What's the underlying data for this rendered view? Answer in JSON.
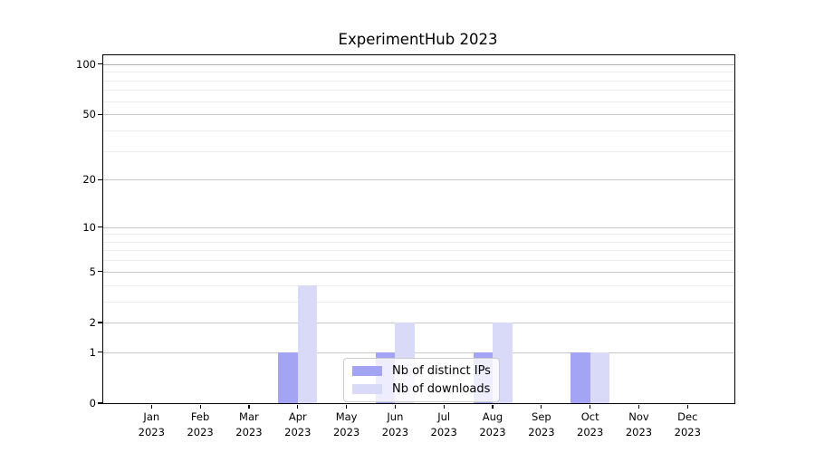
{
  "title": "ExperimentHub 2023",
  "chart_data": {
    "type": "bar",
    "title": "ExperimentHub 2023",
    "categories": [
      "Jan",
      "Feb",
      "Mar",
      "Apr",
      "May",
      "Jun",
      "Jul",
      "Aug",
      "Sep",
      "Oct",
      "Nov",
      "Dec"
    ],
    "year": "2023",
    "series": [
      {
        "name": "Nb of distinct IPs",
        "color": "#a4a4f4",
        "values": [
          0,
          0,
          0,
          1,
          0,
          1,
          0,
          1,
          0,
          1,
          0,
          0
        ]
      },
      {
        "name": "Nb of downloads",
        "color": "#d9d9f8",
        "values": [
          0,
          0,
          0,
          4,
          0,
          2,
          0,
          2,
          0,
          1,
          0,
          0
        ]
      }
    ],
    "y_scale": "log1p",
    "y_major_ticks": [
      0,
      1,
      2,
      5,
      10,
      20,
      50,
      100
    ],
    "y_minor_gridlines": [
      3,
      4,
      6,
      7,
      8,
      9,
      30,
      40,
      60,
      70,
      80,
      90
    ],
    "ylim": [
      0,
      113
    ],
    "xlabel": "",
    "ylabel": "",
    "grid": "horizontal",
    "legend_position": "bottom-center-inside"
  },
  "colors": {
    "distinct_ips": "#a4a4f4",
    "downloads": "#d9d9f8",
    "major_gridline": "#c8c8c8",
    "minor_gridline": "#ededed",
    "axis": "#000000"
  }
}
